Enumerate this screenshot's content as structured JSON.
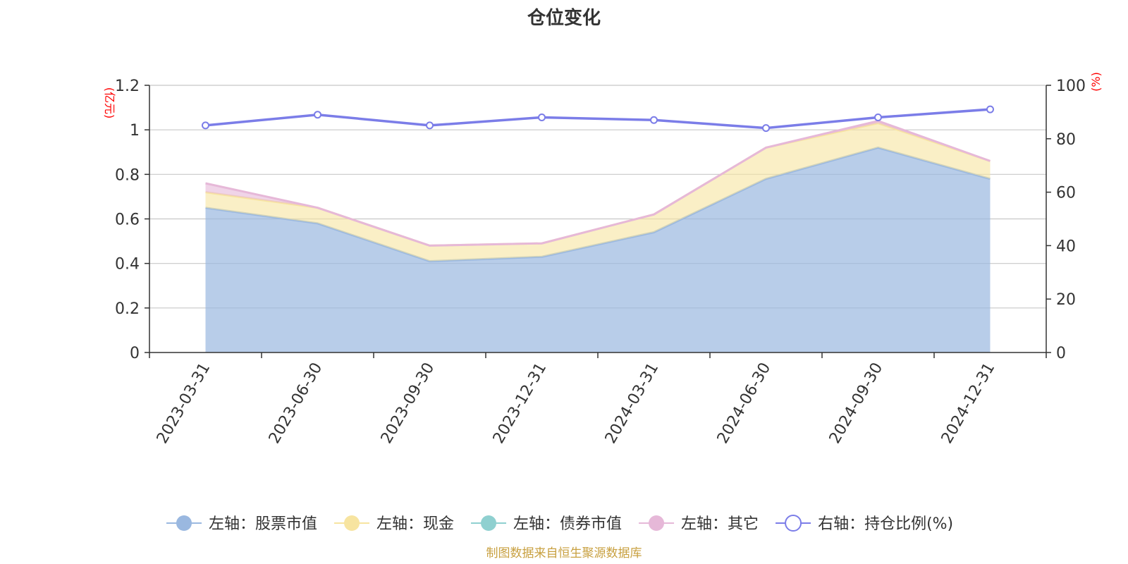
{
  "chart_data": {
    "type": "area",
    "title": "仓位变化",
    "categories": [
      "2023-03-31",
      "2023-06-30",
      "2023-09-30",
      "2023-12-31",
      "2024-03-31",
      "2024-06-30",
      "2024-09-30",
      "2024-12-31"
    ],
    "left_axis": {
      "unit": "(亿元)",
      "ylim": [
        0,
        1.2
      ],
      "ticks": [
        "0",
        "0.2",
        "0.4",
        "0.6",
        "0.8",
        "1",
        "1.2"
      ]
    },
    "right_axis": {
      "unit": "(%)",
      "ylim": [
        0,
        100
      ],
      "ticks": [
        "0",
        "20",
        "40",
        "60",
        "80",
        "100"
      ]
    },
    "series": [
      {
        "name": "左轴：股票市值",
        "axis": "left",
        "type": "area",
        "stacked": true,
        "color": "#9ab8e0",
        "values": [
          0.65,
          0.58,
          0.41,
          0.43,
          0.54,
          0.78,
          0.92,
          0.78
        ]
      },
      {
        "name": "左轴：现金",
        "axis": "left",
        "type": "area",
        "stacked": true,
        "color": "#f7e4a0",
        "values": [
          0.07,
          0.07,
          0.07,
          0.06,
          0.08,
          0.14,
          0.11,
          0.08
        ]
      },
      {
        "name": "左轴：债券市值",
        "axis": "left",
        "type": "area",
        "stacked": true,
        "color": "#8fd0d0",
        "values": [
          0,
          0,
          0,
          0,
          0,
          0,
          0,
          0
        ]
      },
      {
        "name": "左轴：其它",
        "axis": "left",
        "type": "area",
        "stacked": true,
        "color": "#e6b8d8",
        "values": [
          0.04,
          0.0,
          0.0,
          0.0,
          0.0,
          0.0,
          0.01,
          0.0
        ]
      },
      {
        "name": "右轴：持仓比例(%)",
        "axis": "right",
        "type": "line",
        "color": "#7b7de8",
        "values": [
          85,
          89,
          85,
          88,
          87,
          84,
          88,
          91
        ]
      }
    ],
    "grid": true,
    "legend_position": "bottom"
  },
  "source_note": "制图数据来自恒生聚源数据库"
}
